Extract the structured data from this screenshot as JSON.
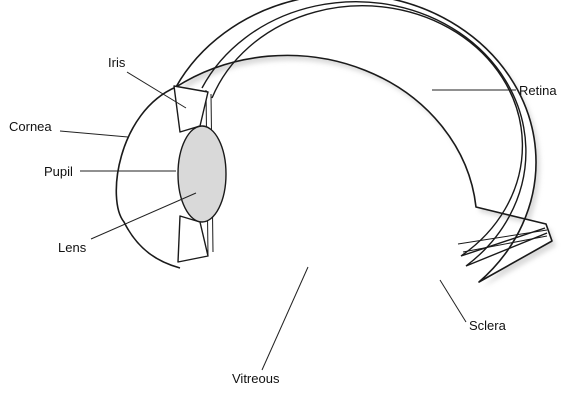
{
  "labels": {
    "iris": "Iris",
    "cornea": "Cornea",
    "pupil": "Pupil",
    "lens": "Lens",
    "retina": "Retina",
    "sclera": "Sclera",
    "vitreous": "Vitreous"
  },
  "colors": {
    "outline": "#1a1a1a",
    "shadow": "#bdbdbd",
    "lens_fill": "#d9d9d9",
    "background": "#ffffff"
  }
}
